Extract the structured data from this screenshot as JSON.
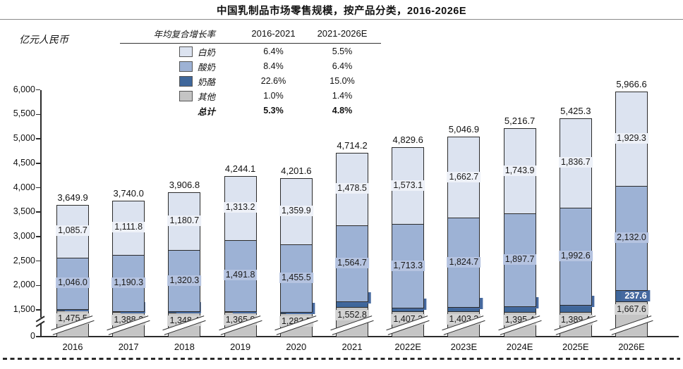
{
  "header": {
    "title": "中国乳制品市场零售规模，按产品分类，2016-2026E"
  },
  "chart": {
    "unit_label": "亿元人民币",
    "y_ticks": [
      0,
      1500,
      2000,
      2500,
      3000,
      3500,
      4000,
      4500,
      5000,
      5500,
      6000
    ]
  },
  "cagr_table": {
    "headers": [
      "年均复合增长率",
      "2016-2021",
      "2021-2026E"
    ],
    "rows": [
      {
        "name": "白奶",
        "swatch": "#dce3f0",
        "cagr_2016_2021": "6.4%",
        "cagr_2021_2026": "5.5%"
      },
      {
        "name": "酸奶",
        "swatch": "#9db2d5",
        "cagr_2016_2021": "8.4%",
        "cagr_2021_2026": "6.4%"
      },
      {
        "name": "奶酪",
        "swatch": "#3f679b",
        "cagr_2016_2021": "22.6%",
        "cagr_2021_2026": "15.0%"
      },
      {
        "name": "其他",
        "swatch": "#c4c4c4",
        "cagr_2016_2021": "1.0%",
        "cagr_2021_2026": "1.4%"
      }
    ],
    "total_row": {
      "name": "总计",
      "cagr_2016_2021": "5.3%",
      "cagr_2021_2026": "4.8%"
    }
  },
  "chart_data": {
    "type": "bar",
    "stacked": true,
    "title": "中国乳制品市场零售规模，按产品分类，2016-2026E",
    "ylabel": "亿元人民币",
    "grid": false,
    "axis": {
      "y_min": 0,
      "y_max": 6000,
      "y_break": [
        0,
        1500
      ],
      "tick_step": 500
    },
    "categories": [
      "2016",
      "2017",
      "2018",
      "2019",
      "2020",
      "2021",
      "2022E",
      "2023E",
      "2024E",
      "2025E",
      "2026E"
    ],
    "series": [
      {
        "name": "其他",
        "color": "#c5c5c5",
        "label_bg": "#d3d3d3",
        "label_color": "#1a1a1a",
        "values": [
          1475.5,
          1388.2,
          1348.4,
          1365.9,
          1283.5,
          1552.8,
          1407.2,
          1403.3,
          1395.4,
          1389.4,
          1667.6
        ]
      },
      {
        "name": "奶酪",
        "color": "#3f679b",
        "label_bg": "#46699f",
        "label_color": "#ffffff",
        "values": [
          42.7,
          49.7,
          57.3,
          73.2,
          102.7,
          118.1,
          135.9,
          156.2,
          179.7,
          206.6,
          237.6
        ]
      },
      {
        "name": "酸奶",
        "color": "#9db2d5",
        "label_bg": "#b5c3e0",
        "label_color": "#1a1a1a",
        "values": [
          1046.0,
          1190.3,
          1320.3,
          1491.8,
          1455.5,
          1564.7,
          1713.3,
          1824.7,
          1897.7,
          1992.6,
          2132.0
        ]
      },
      {
        "name": "白奶",
        "color": "#dce3f0",
        "label_bg": "#eef1f8",
        "label_color": "#1a1a1a",
        "values": [
          1085.7,
          1111.8,
          1180.7,
          1313.2,
          1359.9,
          1478.5,
          1573.1,
          1662.7,
          1743.9,
          1836.7,
          1929.3
        ]
      }
    ],
    "totals": [
      3649.9,
      3740.0,
      3906.8,
      4244.1,
      4201.6,
      4714.2,
      4829.6,
      5046.9,
      5216.7,
      5425.3,
      5966.6
    ]
  }
}
